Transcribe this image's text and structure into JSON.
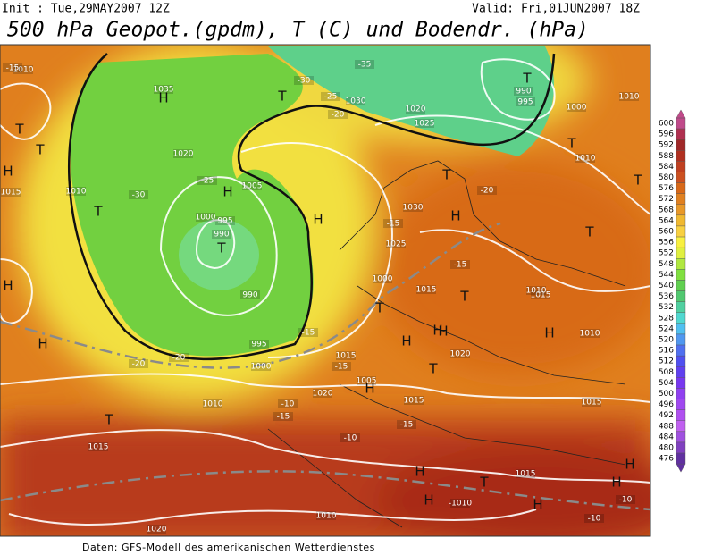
{
  "header": {
    "init": "Init : Tue,29MAY2007 12Z",
    "valid": "Valid: Fri,01JUN2007 18Z",
    "title": "500 hPa Geopot.(gpdm), T (C) und Bodendr. (hPa)"
  },
  "footer": "Daten: GFS-Modell des amerikanischen Wetterdienstes",
  "legend": {
    "levels": [
      600,
      596,
      592,
      588,
      584,
      580,
      576,
      572,
      568,
      564,
      560,
      556,
      552,
      548,
      544,
      540,
      536,
      532,
      528,
      524,
      520,
      516,
      512,
      508,
      504,
      500,
      496,
      492,
      488,
      484,
      480,
      476
    ]
  },
  "map_labels": [
    "T",
    "990",
    "995",
    "-35",
    "-30",
    "-25",
    "H",
    "1035",
    "T",
    "1010",
    "-15",
    "T",
    "1030",
    "-20",
    "1020",
    "1025",
    "1000",
    "1010",
    "H",
    "T",
    "T",
    "1015",
    "1020",
    "-25",
    "1010",
    "H",
    "-30",
    "T",
    "1010",
    "1005",
    "1000",
    "995",
    "990",
    "T",
    "T",
    "-20",
    "990",
    "H",
    "1025",
    "-15",
    "1030",
    "H",
    "-15",
    "1015",
    "T",
    "1015",
    "T",
    "T",
    "H",
    "-20",
    "1000",
    "995",
    "-15",
    "1015",
    "H",
    "H",
    "H",
    "1010",
    "T",
    "H",
    "-20",
    "1010",
    "-15",
    "-15",
    "H",
    "1000",
    "1005",
    "-10",
    "1020",
    "H",
    "1020",
    "T",
    "1010",
    "1015",
    "T",
    "-10",
    "1015",
    "-15",
    "H",
    "1010",
    "H",
    "-1010",
    "T",
    "1015",
    "H",
    "-10",
    "1020",
    "H",
    "-10",
    "H",
    "1015"
  ]
}
